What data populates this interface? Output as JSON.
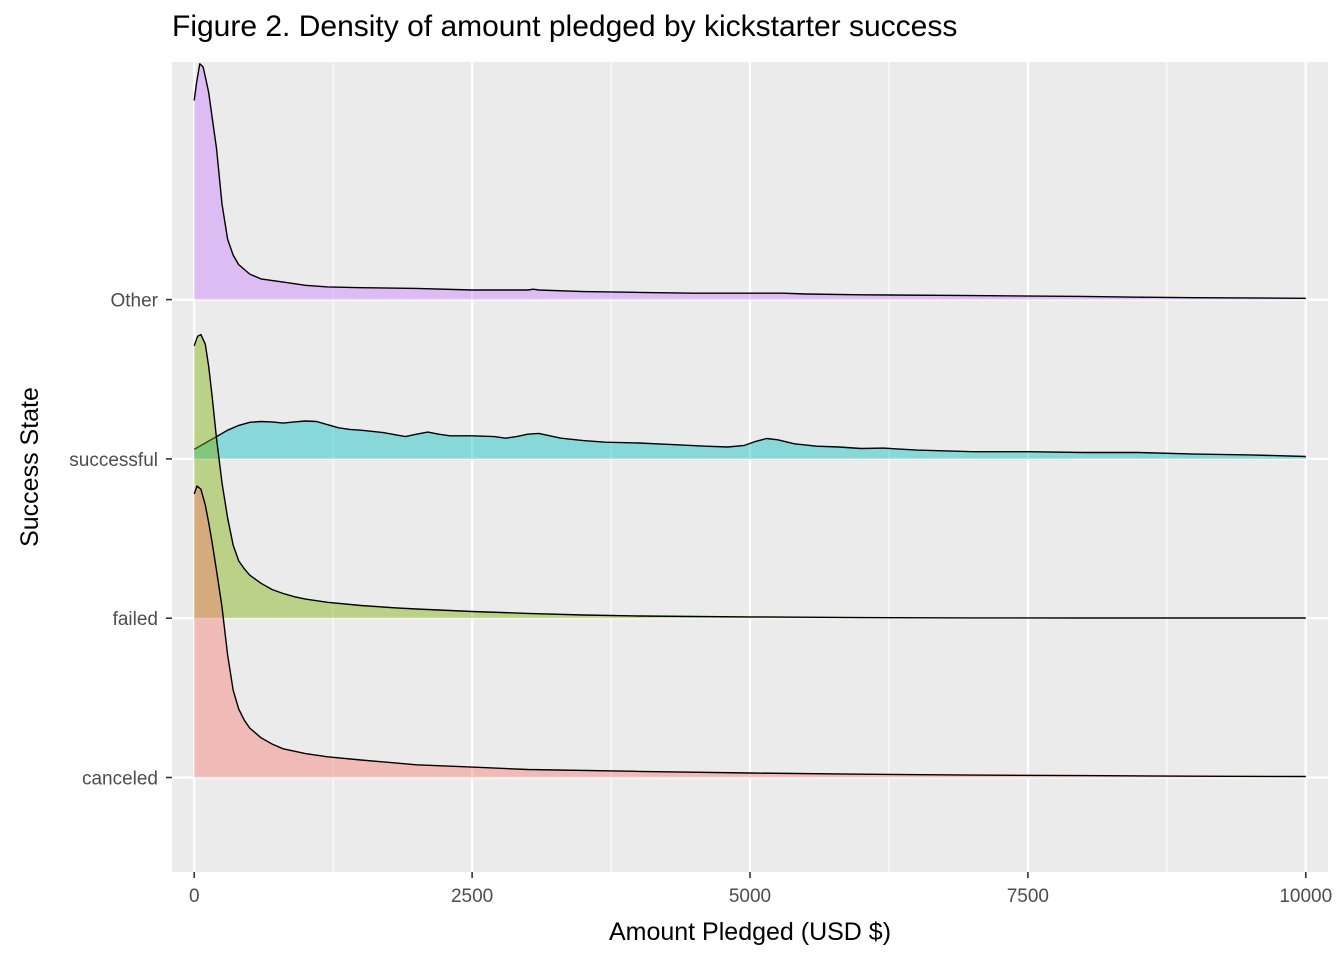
{
  "chart_data": {
    "type": "area",
    "subtype": "ridgeline-density",
    "title": "Figure 2. Density of amount pledged by kickstarter success",
    "xlabel": "Amount Pledged (USD $)",
    "ylabel": "Success State",
    "xlim": [
      -200,
      10200
    ],
    "x_ticks": [
      0,
      2500,
      5000,
      7500,
      10000
    ],
    "x_tick_labels": [
      "0",
      "2500",
      "5000",
      "7500",
      "10000"
    ],
    "categories": [
      "canceled",
      "failed",
      "successful",
      "Other"
    ],
    "grid": true,
    "legend": "none",
    "y_scale_note": "relative density height in units of one category row spacing",
    "series": [
      {
        "name": "canceled",
        "baseline": 1,
        "color": "#F8766D",
        "x": [
          0,
          25,
          60,
          100,
          130,
          160,
          200,
          250,
          300,
          350,
          400,
          450,
          500,
          600,
          700,
          800,
          1000,
          1200,
          1500,
          2000,
          2500,
          3000,
          4000,
          5000,
          6000,
          7000,
          8000,
          9000,
          10000
        ],
        "y": [
          1.78,
          1.83,
          1.81,
          1.71,
          1.6,
          1.48,
          1.3,
          1.07,
          0.77,
          0.55,
          0.43,
          0.36,
          0.31,
          0.25,
          0.21,
          0.18,
          0.15,
          0.13,
          0.11,
          0.08,
          0.065,
          0.05,
          0.038,
          0.028,
          0.021,
          0.015,
          0.012,
          0.008,
          0.006
        ]
      },
      {
        "name": "failed",
        "baseline": 2,
        "color": "#7CAE00",
        "x": [
          0,
          30,
          60,
          100,
          130,
          160,
          200,
          250,
          300,
          350,
          400,
          450,
          500,
          600,
          700,
          800,
          900,
          1000,
          1200,
          1500,
          1800,
          2000,
          2500,
          3000,
          3500,
          4000,
          5000,
          6000,
          7000,
          8000,
          9000,
          10000
        ],
        "y": [
          1.71,
          1.77,
          1.78,
          1.72,
          1.58,
          1.4,
          1.13,
          0.85,
          0.63,
          0.46,
          0.36,
          0.31,
          0.27,
          0.22,
          0.18,
          0.155,
          0.135,
          0.12,
          0.1,
          0.08,
          0.065,
          0.058,
          0.042,
          0.03,
          0.02,
          0.014,
          0.008,
          0.004,
          0.002,
          0.001,
          0.001,
          0.001
        ]
      },
      {
        "name": "successful",
        "baseline": 3,
        "color": "#00BFC4",
        "x": [
          0,
          100,
          200,
          300,
          400,
          500,
          600,
          700,
          800,
          900,
          1000,
          1100,
          1200,
          1300,
          1400,
          1500,
          1700,
          1900,
          2000,
          2100,
          2200,
          2300,
          2500,
          2700,
          2800,
          2900,
          3000,
          3100,
          3300,
          3500,
          3700,
          4000,
          4300,
          4600,
          4800,
          4950,
          5050,
          5150,
          5250,
          5400,
          5600,
          5800,
          6000,
          6200,
          6500,
          7000,
          7500,
          8000,
          8500,
          9000,
          9500,
          10000
        ],
        "y": [
          0.06,
          0.1,
          0.14,
          0.18,
          0.21,
          0.23,
          0.235,
          0.232,
          0.225,
          0.232,
          0.238,
          0.235,
          0.215,
          0.195,
          0.185,
          0.18,
          0.165,
          0.14,
          0.155,
          0.168,
          0.155,
          0.145,
          0.145,
          0.14,
          0.13,
          0.14,
          0.155,
          0.16,
          0.13,
          0.115,
          0.105,
          0.1,
          0.09,
          0.08,
          0.075,
          0.085,
          0.11,
          0.128,
          0.12,
          0.095,
          0.08,
          0.075,
          0.065,
          0.068,
          0.055,
          0.045,
          0.045,
          0.04,
          0.04,
          0.03,
          0.025,
          0.015
        ]
      },
      {
        "name": "Other",
        "baseline": 4,
        "color": "#C77CFF",
        "x": [
          0,
          20,
          50,
          80,
          100,
          130,
          160,
          200,
          250,
          300,
          350,
          400,
          500,
          600,
          800,
          1000,
          1200,
          1500,
          2000,
          2500,
          3000,
          3050,
          3100,
          3500,
          4000,
          4500,
          5000,
          5300,
          5500,
          6000,
          7000,
          8000,
          8500,
          9000,
          10000
        ],
        "y": [
          1.25,
          1.36,
          1.48,
          1.46,
          1.4,
          1.3,
          1.15,
          0.95,
          0.6,
          0.38,
          0.28,
          0.22,
          0.16,
          0.13,
          0.11,
          0.09,
          0.08,
          0.075,
          0.07,
          0.06,
          0.06,
          0.065,
          0.06,
          0.05,
          0.045,
          0.04,
          0.04,
          0.04,
          0.035,
          0.03,
          0.025,
          0.02,
          0.015,
          0.012,
          0.008
        ]
      }
    ]
  }
}
